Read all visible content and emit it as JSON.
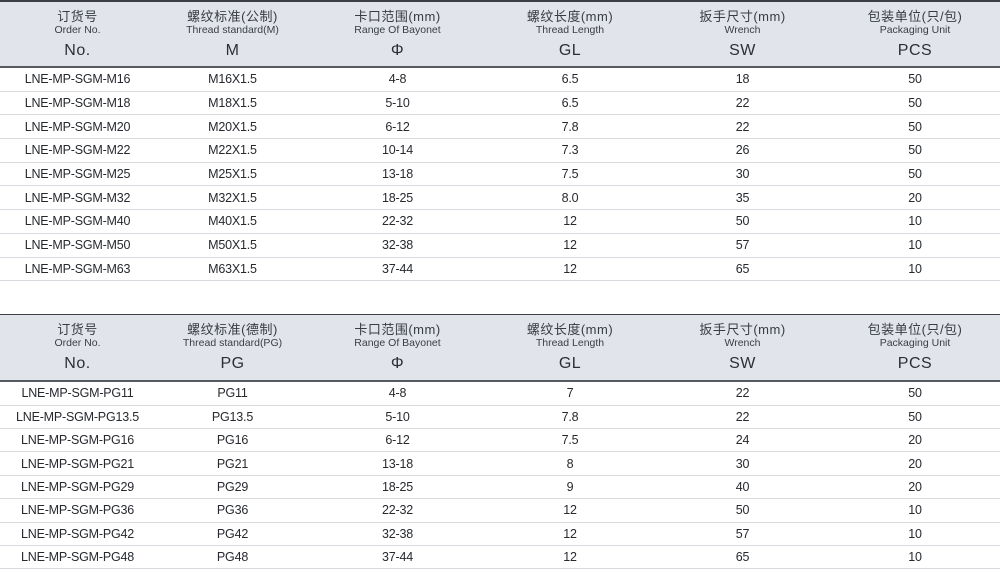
{
  "colors": {
    "header_bg": "#e1e4ea",
    "top_border": "#3c4046",
    "header_rule": "#565b61",
    "row_line": "#d6d9dd",
    "data_text": "#26292e",
    "header_text": "#383c43"
  },
  "tables": [
    {
      "id": "metric",
      "columns": [
        {
          "zh": "订货号",
          "en": "Order No.",
          "code": "No."
        },
        {
          "zh": "螺纹标准(公制)",
          "en": "Thread standard(M)",
          "code": "M"
        },
        {
          "zh": "卡口范围(mm)",
          "en": "Range Of Bayonet",
          "code": "Φ"
        },
        {
          "zh": "螺纹长度(mm)",
          "en": "Thread Length",
          "code": "GL"
        },
        {
          "zh": "扳手尺寸(mm)",
          "en": "Wrench",
          "code": "SW"
        },
        {
          "zh": "包装单位(只/包)",
          "en": "Packaging Unit",
          "code": "PCS"
        }
      ],
      "rows": [
        [
          "LNE-MP-SGM-M16",
          "M16X1.5",
          "4-8",
          "6.5",
          "18",
          "50"
        ],
        [
          "LNE-MP-SGM-M18",
          "M18X1.5",
          "5-10",
          "6.5",
          "22",
          "50"
        ],
        [
          "LNE-MP-SGM-M20",
          "M20X1.5",
          "6-12",
          "7.8",
          "22",
          "50"
        ],
        [
          "LNE-MP-SGM-M22",
          "M22X1.5",
          "10-14",
          "7.3",
          "26",
          "50"
        ],
        [
          "LNE-MP-SGM-M25",
          "M25X1.5",
          "13-18",
          "7.5",
          "30",
          "50"
        ],
        [
          "LNE-MP-SGM-M32",
          "M32X1.5",
          "18-25",
          "8.0",
          "35",
          "20"
        ],
        [
          "LNE-MP-SGM-M40",
          "M40X1.5",
          "22-32",
          "12",
          "50",
          "10"
        ],
        [
          "LNE-MP-SGM-M50",
          "M50X1.5",
          "32-38",
          "12",
          "57",
          "10"
        ],
        [
          "LNE-MP-SGM-M63",
          "M63X1.5",
          "37-44",
          "12",
          "65",
          "10"
        ]
      ]
    },
    {
      "id": "pg",
      "columns": [
        {
          "zh": "订货号",
          "en": "Order No.",
          "code": "No."
        },
        {
          "zh": "螺纹标准(德制)",
          "en": "Thread standard(PG)",
          "code": "PG"
        },
        {
          "zh": "卡口范围(mm)",
          "en": "Range Of Bayonet",
          "code": "Φ"
        },
        {
          "zh": "螺纹长度(mm)",
          "en": "Thread Length",
          "code": "GL"
        },
        {
          "zh": "扳手尺寸(mm)",
          "en": "Wrench",
          "code": "SW"
        },
        {
          "zh": "包装单位(只/包)",
          "en": "Packaging Unit",
          "code": "PCS"
        }
      ],
      "rows": [
        [
          "LNE-MP-SGM-PG11",
          "PG11",
          "4-8",
          "7",
          "22",
          "50"
        ],
        [
          "LNE-MP-SGM-PG13.5",
          "PG13.5",
          "5-10",
          "7.8",
          "22",
          "50"
        ],
        [
          "LNE-MP-SGM-PG16",
          "PG16",
          "6-12",
          "7.5",
          "24",
          "20"
        ],
        [
          "LNE-MP-SGM-PG21",
          "PG21",
          "13-18",
          "8",
          "30",
          "20"
        ],
        [
          "LNE-MP-SGM-PG29",
          "PG29",
          "18-25",
          "9",
          "40",
          "20"
        ],
        [
          "LNE-MP-SGM-PG36",
          "PG36",
          "22-32",
          "12",
          "50",
          "10"
        ],
        [
          "LNE-MP-SGM-PG42",
          "PG42",
          "32-38",
          "12",
          "57",
          "10"
        ],
        [
          "LNE-MP-SGM-PG48",
          "PG48",
          "37-44",
          "12",
          "65",
          "10"
        ]
      ]
    }
  ]
}
